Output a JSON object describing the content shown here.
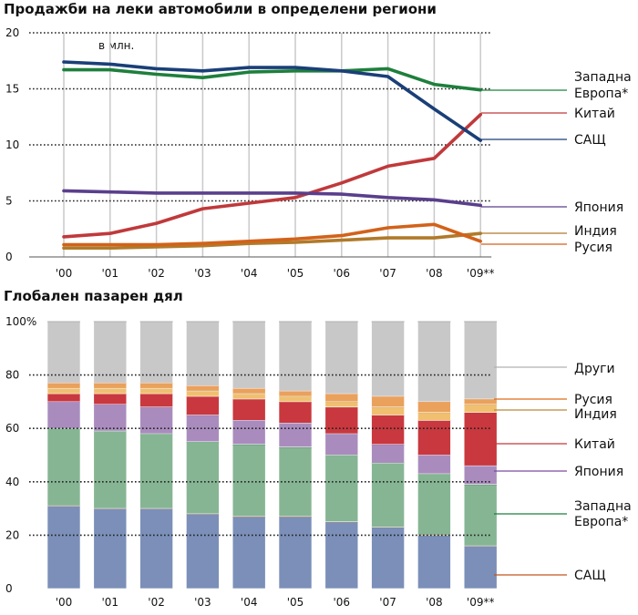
{
  "chart_data": [
    {
      "type": "line",
      "title": "Продажби на леки автомобили в определени региони",
      "unit_label": "в млн.",
      "x": [
        "'00",
        "'01",
        "'02",
        "'03",
        "'04",
        "'05",
        "'06",
        "'07",
        "'08",
        "'09**"
      ],
      "ylim": [
        0,
        20
      ],
      "yticks": [
        0,
        5,
        10,
        15,
        20
      ],
      "grid": true,
      "series": [
        {
          "name": "Западна Европа*",
          "color": "#1e7f3c",
          "values": [
            16.7,
            16.7,
            16.3,
            16.0,
            16.5,
            16.6,
            16.6,
            16.8,
            15.4,
            14.9
          ]
        },
        {
          "name": "Китай",
          "color": "#c0393b",
          "values": [
            1.8,
            2.1,
            3.0,
            4.3,
            4.8,
            5.3,
            6.6,
            8.1,
            8.8,
            12.7
          ]
        },
        {
          "name": "САЩ",
          "color": "#1a3f78",
          "values": [
            17.4,
            17.2,
            16.8,
            16.6,
            16.9,
            16.9,
            16.6,
            16.1,
            13.2,
            10.4
          ]
        },
        {
          "name": "Япония",
          "color": "#5a3f8c",
          "values": [
            5.9,
            5.8,
            5.7,
            5.7,
            5.7,
            5.7,
            5.6,
            5.3,
            5.1,
            4.6
          ]
        },
        {
          "name": "Индия",
          "color": "#b07a2a",
          "values": [
            0.8,
            0.8,
            0.9,
            1.0,
            1.2,
            1.3,
            1.5,
            1.7,
            1.7,
            2.1
          ]
        },
        {
          "name": "Русия",
          "color": "#d2621a",
          "values": [
            1.1,
            1.1,
            1.1,
            1.2,
            1.4,
            1.6,
            1.9,
            2.6,
            2.9,
            1.4
          ]
        }
      ]
    },
    {
      "type": "bar",
      "title": "Глобален пазарен дял",
      "stacked": true,
      "categories": [
        "'00",
        "'01",
        "'02",
        "'03",
        "'04",
        "'05",
        "'06",
        "'07",
        "'08",
        "'09**"
      ],
      "ylim": [
        0,
        100
      ],
      "yticks": [
        "0",
        "20",
        "40",
        "60",
        "80",
        "100%"
      ],
      "series": [
        {
          "name": "САЩ",
          "color": "#7b8fb8",
          "line_color": "#c0561b",
          "values": [
            31,
            30,
            30,
            28,
            27,
            27,
            25,
            23,
            20,
            16
          ]
        },
        {
          "name": "Западна Европа*",
          "color": "#86b594",
          "line_color": "#1e7f3c",
          "values": [
            29,
            29,
            28,
            27,
            27,
            26,
            25,
            24,
            23,
            23
          ]
        },
        {
          "name": "Япония",
          "color": "#a98cbd",
          "line_color": "#7a4aa0",
          "values": [
            10,
            10,
            10,
            10,
            9,
            9,
            8,
            7,
            7,
            7
          ]
        },
        {
          "name": "Китай",
          "color": "#c8383e",
          "line_color": "#c0393b",
          "values": [
            3,
            4,
            5,
            7,
            8,
            8,
            10,
            11,
            13,
            20
          ]
        },
        {
          "name": "Индия",
          "color": "#f0c070",
          "line_color": "#b88a3a",
          "values": [
            2,
            2,
            2,
            2,
            2,
            2,
            2,
            3,
            3,
            3
          ]
        },
        {
          "name": "Русия",
          "color": "#e9a15c",
          "line_color": "#e06a1a",
          "values": [
            2,
            2,
            2,
            2,
            2,
            2,
            3,
            4,
            4,
            2
          ]
        },
        {
          "name": "Други",
          "color": "#c8c8c8",
          "line_color": "#b0b0b0",
          "values": [
            23,
            23,
            23,
            24,
            25,
            26,
            27,
            28,
            30,
            29
          ]
        }
      ]
    }
  ]
}
